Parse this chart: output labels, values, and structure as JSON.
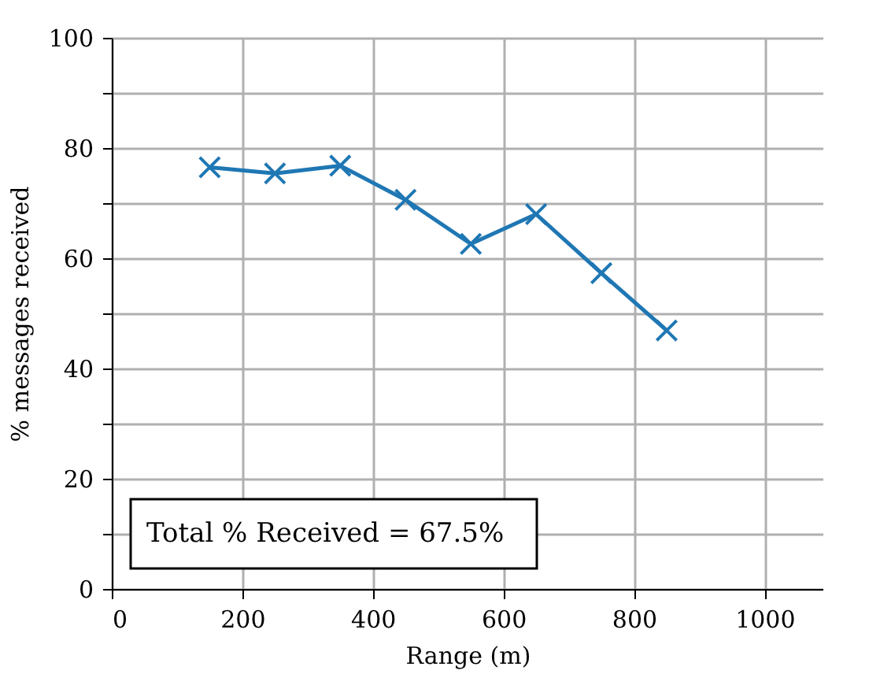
{
  "chart_data": {
    "type": "line",
    "xlabel": "Range (m)",
    "ylabel": "% messages received",
    "x": [
      150,
      250,
      350,
      450,
      550,
      650,
      750,
      850
    ],
    "series": [
      {
        "color": "#1f77b4",
        "values": [
          76.5,
          75.4,
          76.8,
          70.6,
          62.6,
          68.0,
          57.3,
          46.9
        ]
      }
    ],
    "xlim": [
      0,
      1090
    ],
    "xticks": [
      0,
      200,
      400,
      600,
      800,
      1000
    ],
    "ylim": [
      0,
      100
    ],
    "yticks": [
      0,
      {
        "value": 10,
        "label": null
      },
      20,
      {
        "value": 30,
        "label": null
      },
      40,
      {
        "value": 50,
        "label": null
      },
      60,
      {
        "value": 70,
        "label": null
      },
      80,
      {
        "value": 90,
        "label": null
      },
      100
    ],
    "grid": true,
    "marker": "cross",
    "line_style": "solid",
    "legend": false,
    "annotations": [
      "Total % Received = 67.5%"
    ]
  }
}
